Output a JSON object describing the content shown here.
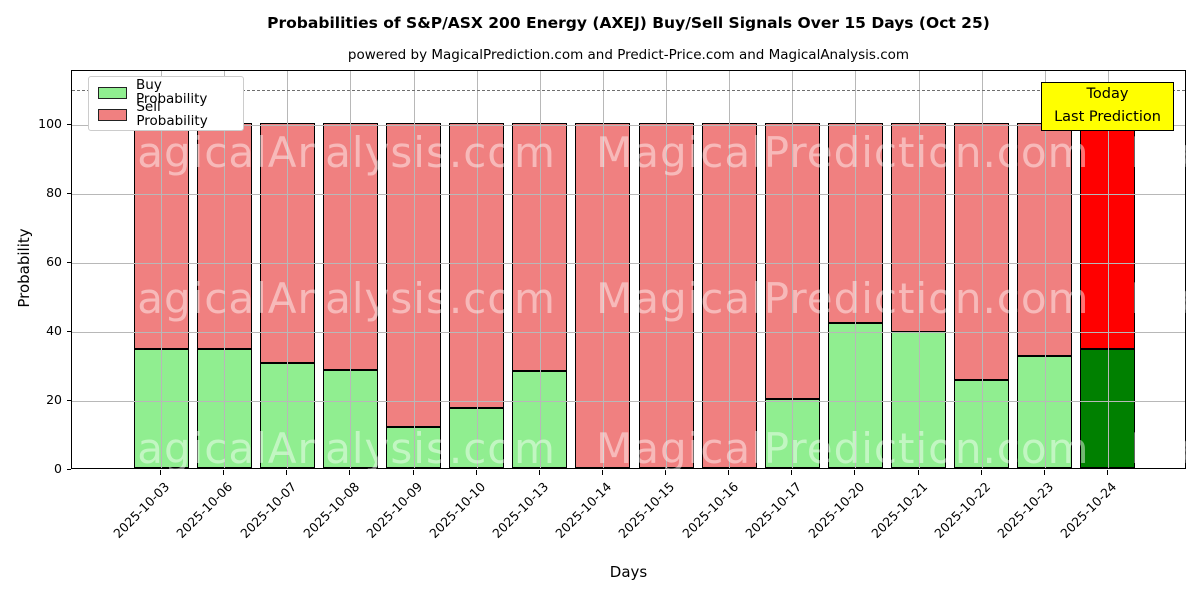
{
  "title": "Probabilities of S&P/ASX 200 Energy (AXEJ) Buy/Sell Signals Over 15 Days (Oct 25)",
  "subtitle": "powered by MagicalPrediction.com and Predict-Price.com and MagicalAnalysis.com",
  "axes": {
    "ylabel": "Probability",
    "xlabel": "Days",
    "yticks": [
      0,
      20,
      40,
      60,
      80,
      100
    ],
    "ylim": [
      0,
      115.6
    ],
    "dashed_line_y": 110,
    "grid": "on"
  },
  "legend": {
    "items": [
      {
        "label": "Buy Probability",
        "color": "#90EE90"
      },
      {
        "label": "Sell Probability",
        "color": "#F08080"
      }
    ]
  },
  "annotation": {
    "line1": "Today",
    "line2": "Last Prediction",
    "bg": "#ffff00"
  },
  "watermarks": {
    "text_left": "MagicalAnalysis.com",
    "text_right": "MagicalPrediction.com",
    "text_partial": "Ma"
  },
  "chart_data": {
    "type": "bar",
    "stacked": true,
    "title": "Probabilities of S&P/ASX 200 Energy (AXEJ) Buy/Sell Signals Over 15 Days (Oct 25)",
    "categories": [
      "2025-10-03",
      "2025-10-06",
      "2025-10-07",
      "2025-10-08",
      "2025-10-09",
      "2025-10-10",
      "2025-10-13",
      "2025-10-14",
      "2025-10-15",
      "2025-10-16",
      "2025-10-17",
      "2025-10-20",
      "2025-10-21",
      "2025-10-22",
      "2025-10-23",
      "2025-10-24"
    ],
    "series": [
      {
        "name": "Buy Probability",
        "color": "#90EE90",
        "today_color": "#008000",
        "values": [
          34.5,
          34.5,
          30.5,
          28.5,
          12,
          17.5,
          28,
          0,
          0,
          0,
          20,
          42,
          39.5,
          25.5,
          32.5,
          34.5
        ]
      },
      {
        "name": "Sell Probability",
        "color": "#F08080",
        "today_color": "#FF0000",
        "values": [
          65.5,
          65.5,
          69.5,
          71.5,
          88,
          82.5,
          72,
          100,
          100,
          100,
          80,
          58,
          60.5,
          74.5,
          67.5,
          65.5
        ]
      }
    ],
    "today_index": 15,
    "xlabel": "Days",
    "ylabel": "Probability",
    "legend_position": "upper left"
  }
}
